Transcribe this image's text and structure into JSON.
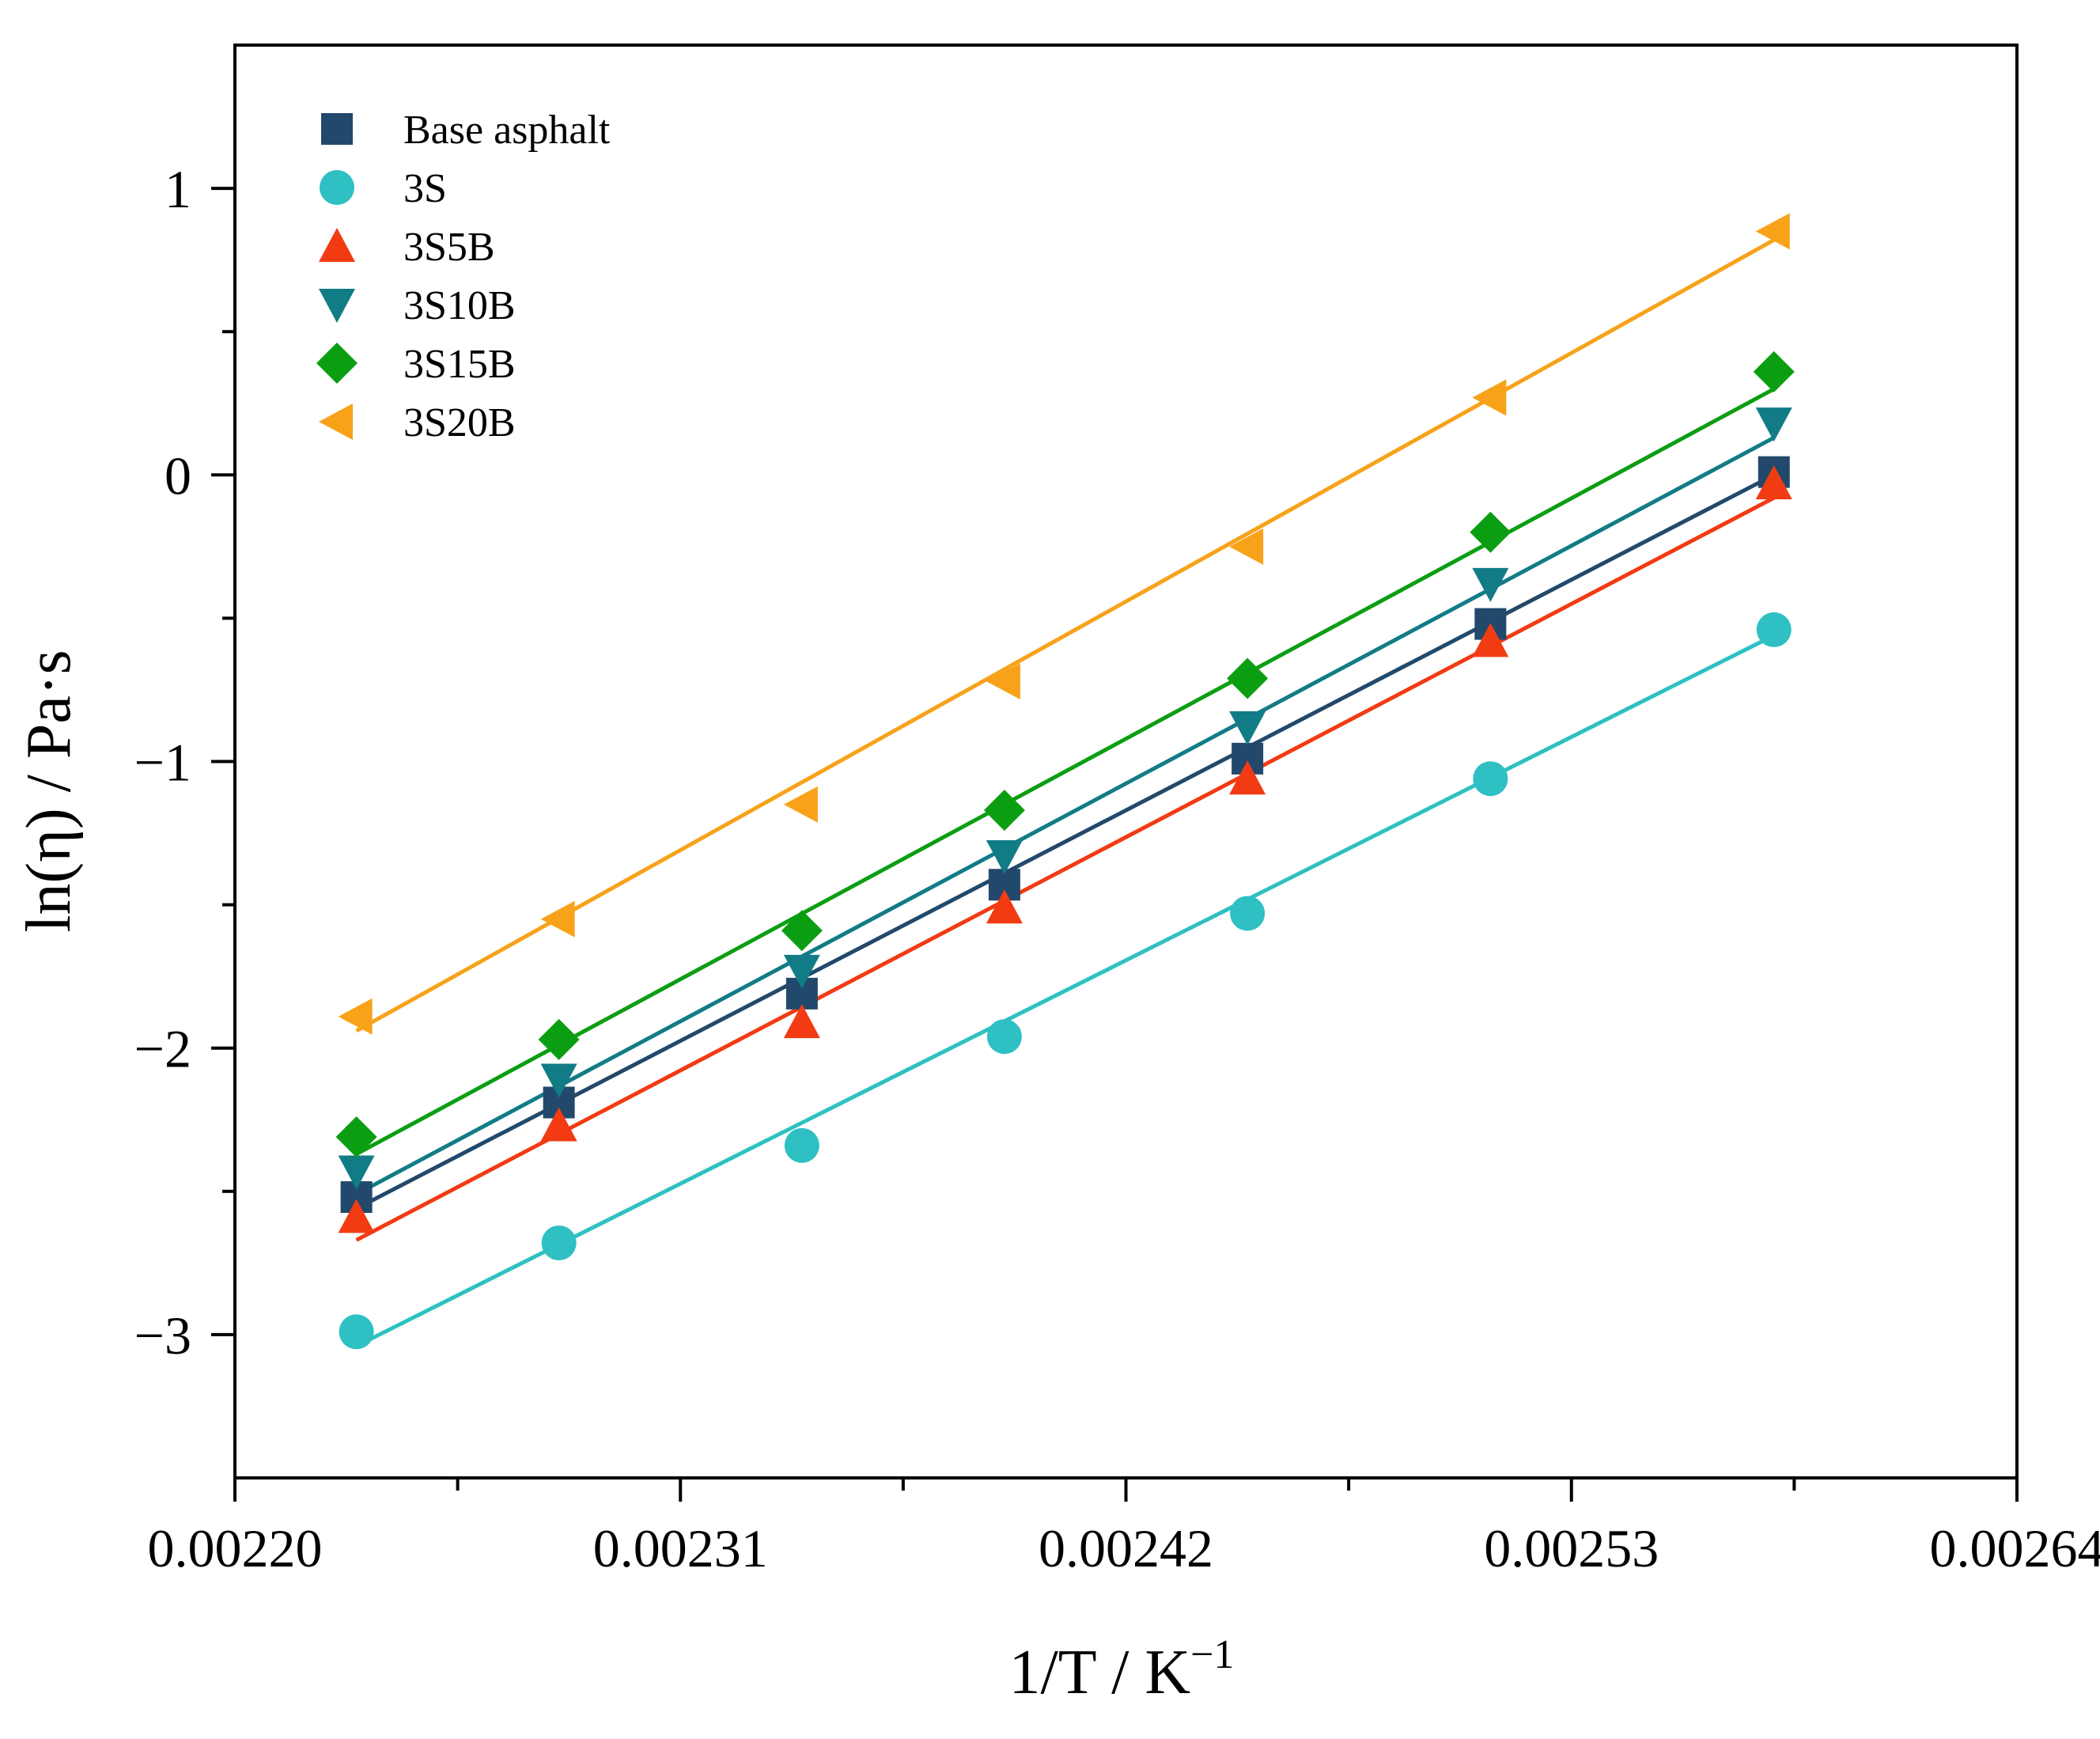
{
  "chart_data": {
    "type": "scatter",
    "title": "",
    "xlabel": "1/T / K",
    "xlabel_superscript": "−1",
    "ylabel": "ln(η) / Pa·s",
    "xlim": [
      0.0022,
      0.00264
    ],
    "ylim": [
      -3.5,
      1.5
    ],
    "x_ticks": [
      0.0022,
      0.00231,
      0.00242,
      0.00253,
      0.00264
    ],
    "x_tick_labels": [
      "0.00220",
      "0.00231",
      "0.00242",
      "0.00253",
      "0.00264"
    ],
    "x_minor_ticks": [
      0.002255,
      0.002365,
      0.002475,
      0.002585
    ],
    "y_ticks": [
      -3,
      -2,
      -1,
      0,
      1
    ],
    "y_tick_labels": [
      "−3",
      "−2",
      "−1",
      "0",
      "1"
    ],
    "y_minor_ticks": [
      -2.5,
      -1.5,
      -0.5,
      0.5
    ],
    "grid": false,
    "legend_position": "top-left",
    "x": [
      0.00223,
      0.00228,
      0.00234,
      0.00239,
      0.00245,
      0.00251,
      0.00258
    ],
    "series": [
      {
        "name": "Base asphalt",
        "marker": "square",
        "color": "#22496b",
        "values": [
          -2.52,
          -2.19,
          -1.81,
          -1.43,
          -0.99,
          -0.52,
          0.01
        ],
        "fit": [
          -2.56,
          0.0
        ]
      },
      {
        "name": "3S",
        "marker": "circle",
        "color": "#2ec0c3",
        "values": [
          -2.99,
          -2.68,
          -2.34,
          -1.96,
          -1.53,
          -1.06,
          -0.54
        ],
        "fit": [
          -3.04,
          -0.56
        ]
      },
      {
        "name": "3S5B",
        "marker": "triangle-up",
        "color": "#f23b13",
        "values": [
          -2.59,
          -2.27,
          -1.91,
          -1.51,
          -1.06,
          -0.58,
          -0.03
        ],
        "fit": [
          -2.67,
          -0.08
        ]
      },
      {
        "name": "3S10B",
        "marker": "triangle-down",
        "color": "#117c86",
        "values": [
          -2.43,
          -2.11,
          -1.73,
          -1.33,
          -0.88,
          -0.38,
          0.18
        ],
        "fit": [
          -2.51,
          0.13
        ]
      },
      {
        "name": "3S15B",
        "marker": "diamond",
        "color": "#0c9e12",
        "values": [
          -2.31,
          -1.97,
          -1.59,
          -1.17,
          -0.71,
          -0.2,
          0.36
        ],
        "fit": [
          -2.37,
          0.3
        ]
      },
      {
        "name": "3S20B",
        "marker": "triangle-left",
        "color": "#f8a21a",
        "values": [
          -1.89,
          -1.55,
          -1.15,
          -0.72,
          -0.25,
          0.27,
          0.85
        ],
        "fit": [
          -1.94,
          0.82
        ]
      }
    ]
  }
}
